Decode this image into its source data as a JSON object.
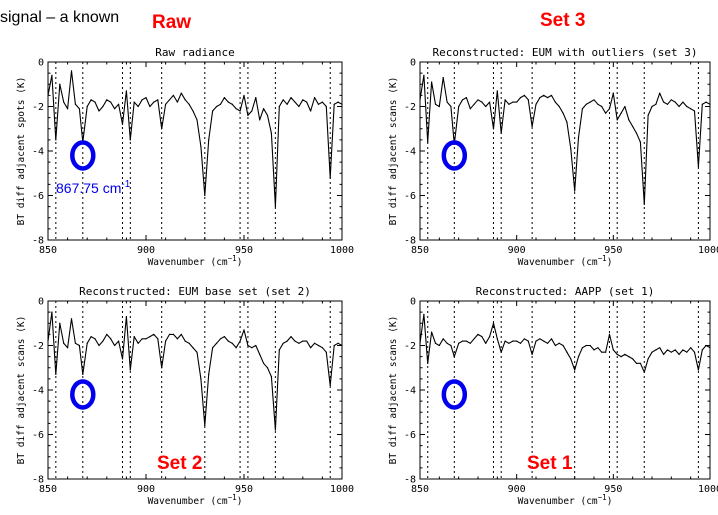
{
  "header_text": "signal – a known",
  "overlay_labels": {
    "raw": "Raw",
    "set3": "Set 3",
    "set2": "Set 2",
    "set1": "Set 1"
  },
  "annotation": {
    "label": "867.75 cm",
    "superscript": "-1",
    "color": "#0000ee"
  },
  "colors": {
    "overlay_label": "#ff0000",
    "circle": "#0000ee",
    "trace": "#000000"
  },
  "chart_data": [
    {
      "id": "raw",
      "type": "line",
      "title": "Raw radiance",
      "ylabel": "BT diff adjacent spots (K)",
      "xlabel": "Wavenumber (cm",
      "xlabel_sup": "−1",
      "xlabel_close": ")",
      "xlim": [
        850,
        1000
      ],
      "ylim": [
        -8,
        0
      ],
      "xticks": [
        850,
        900,
        950,
        1000
      ],
      "yticks": [
        -8,
        -6,
        -4,
        -2,
        0
      ],
      "reference_lines": [
        854,
        867.75,
        888,
        892,
        908,
        930,
        948,
        952,
        966,
        994
      ],
      "highlight_x": 867.75,
      "highlight_y": -4.2,
      "x": [
        850,
        852,
        854,
        856,
        858,
        860,
        862,
        864,
        866,
        867.75,
        870,
        872,
        874,
        876,
        878,
        880,
        882,
        884,
        886,
        888,
        890,
        892,
        894,
        896,
        898,
        900,
        902,
        904,
        906,
        908,
        910,
        912,
        914,
        916,
        918,
        920,
        922,
        924,
        926,
        928,
        930,
        932,
        934,
        936,
        938,
        940,
        942,
        944,
        946,
        948,
        950,
        952,
        954,
        956,
        958,
        960,
        962,
        964,
        966,
        968,
        970,
        972,
        974,
        976,
        978,
        980,
        982,
        984,
        986,
        988,
        990,
        992,
        994,
        996,
        998,
        1000
      ],
      "y": [
        -1.5,
        -0.6,
        -3.5,
        -1.0,
        -1.8,
        -2.1,
        -0.4,
        -1.9,
        -2.1,
        -3.6,
        -2.0,
        -1.7,
        -1.8,
        -2.2,
        -2.0,
        -1.7,
        -1.8,
        -2.1,
        -1.9,
        -2.8,
        -1.3,
        -3.5,
        -1.8,
        -2.0,
        -1.7,
        -1.6,
        -2.0,
        -1.8,
        -1.7,
        -3.0,
        -1.9,
        -1.7,
        -1.5,
        -1.8,
        -1.4,
        -1.7,
        -1.9,
        -2.2,
        -2.6,
        -3.8,
        -6.0,
        -3.5,
        -2.2,
        -2.0,
        -1.9,
        -1.6,
        -1.8,
        -1.9,
        -2.1,
        -2.2,
        -1.5,
        -2.4,
        -2.2,
        -1.6,
        -2.6,
        -2.1,
        -2.4,
        -3.2,
        -6.5,
        -2.0,
        -1.7,
        -1.9,
        -1.6,
        -1.8,
        -2.0,
        -1.7,
        -1.8,
        -2.2,
        -1.6,
        -1.9,
        -1.8,
        -2.0,
        -5.2,
        -1.9,
        -1.8,
        -1.9
      ]
    },
    {
      "id": "set3",
      "type": "line",
      "title": "Reconstructed: EUM with outliers (set 3)",
      "ylabel": "BT diff adjacent scans (K)",
      "xlabel": "Wavenumber (cm",
      "xlabel_sup": "−1",
      "xlabel_close": ")",
      "xlim": [
        850,
        1000
      ],
      "ylim": [
        -8,
        0
      ],
      "xticks": [
        850,
        900,
        950,
        1000
      ],
      "yticks": [
        -8,
        -6,
        -4,
        -2,
        0
      ],
      "reference_lines": [
        854,
        867.75,
        888,
        892,
        908,
        930,
        948,
        952,
        966,
        994
      ],
      "highlight_x": 867.75,
      "highlight_y": -4.2,
      "x": [
        850,
        852,
        854,
        856,
        858,
        860,
        862,
        864,
        866,
        867.75,
        870,
        872,
        874,
        876,
        878,
        880,
        882,
        884,
        886,
        888,
        890,
        892,
        894,
        896,
        898,
        900,
        902,
        904,
        906,
        908,
        910,
        912,
        914,
        916,
        918,
        920,
        922,
        924,
        926,
        928,
        930,
        932,
        934,
        936,
        938,
        940,
        942,
        944,
        946,
        948,
        950,
        952,
        954,
        956,
        958,
        960,
        962,
        964,
        966,
        968,
        970,
        972,
        974,
        976,
        978,
        980,
        982,
        984,
        986,
        988,
        990,
        992,
        994,
        996,
        998,
        1000
      ],
      "y": [
        -1.7,
        -0.6,
        -3.6,
        -0.9,
        -1.9,
        -2.0,
        -0.7,
        -1.8,
        -2.0,
        -3.7,
        -2.0,
        -1.7,
        -1.6,
        -2.1,
        -1.9,
        -1.7,
        -1.8,
        -2.0,
        -1.8,
        -3.0,
        -1.3,
        -3.2,
        -1.7,
        -1.9,
        -1.8,
        -1.8,
        -1.6,
        -1.5,
        -1.7,
        -2.9,
        -1.9,
        -1.6,
        -1.5,
        -1.6,
        -1.5,
        -1.8,
        -2.0,
        -2.3,
        -2.7,
        -3.9,
        -5.8,
        -3.4,
        -2.1,
        -1.9,
        -1.8,
        -1.7,
        -1.9,
        -2.0,
        -2.3,
        -2.1,
        -1.4,
        -2.6,
        -2.3,
        -2.0,
        -2.6,
        -2.9,
        -3.2,
        -3.6,
        -6.4,
        -2.4,
        -2.0,
        -1.9,
        -1.4,
        -1.8,
        -1.9,
        -1.7,
        -1.8,
        -2.0,
        -1.8,
        -2.0,
        -2.1,
        -2.2,
        -4.7,
        -1.9,
        -1.8,
        -1.9
      ]
    },
    {
      "id": "set2",
      "type": "line",
      "title": "Reconstructed: EUM base set (set 2)",
      "ylabel": "BT diff adjacent scans (K)",
      "xlabel": "Wavenumber (cm",
      "xlabel_sup": "−1",
      "xlabel_close": ")",
      "xlim": [
        850,
        1000
      ],
      "ylim": [
        -8,
        0
      ],
      "xticks": [
        850,
        900,
        950,
        1000
      ],
      "yticks": [
        -8,
        -6,
        -4,
        -2,
        0
      ],
      "reference_lines": [
        854,
        867.75,
        888,
        892,
        908,
        930,
        948,
        952,
        966,
        994
      ],
      "highlight_x": 867.75,
      "highlight_y": -4.2,
      "x": [
        850,
        852,
        854,
        856,
        858,
        860,
        862,
        864,
        866,
        867.75,
        870,
        872,
        874,
        876,
        878,
        880,
        882,
        884,
        886,
        888,
        890,
        892,
        894,
        896,
        898,
        900,
        902,
        904,
        906,
        908,
        910,
        912,
        914,
        916,
        918,
        920,
        922,
        924,
        926,
        928,
        930,
        932,
        934,
        936,
        938,
        940,
        942,
        944,
        946,
        948,
        950,
        952,
        954,
        956,
        958,
        960,
        962,
        964,
        966,
        968,
        970,
        972,
        974,
        976,
        978,
        980,
        982,
        984,
        986,
        988,
        990,
        992,
        994,
        996,
        998,
        1000
      ],
      "y": [
        -1.8,
        -0.5,
        -3.3,
        -1.0,
        -1.9,
        -2.1,
        -0.8,
        -1.9,
        -2.0,
        -3.3,
        -1.9,
        -1.6,
        -1.7,
        -2.0,
        -1.8,
        -1.5,
        -1.7,
        -2.0,
        -1.8,
        -2.6,
        -0.7,
        -3.1,
        -1.6,
        -1.9,
        -1.7,
        -1.7,
        -1.6,
        -1.5,
        -1.7,
        -3.0,
        -1.8,
        -1.5,
        -1.5,
        -1.7,
        -1.5,
        -1.8,
        -1.9,
        -2.1,
        -2.3,
        -3.5,
        -5.6,
        -3.3,
        -2.1,
        -1.9,
        -1.7,
        -1.6,
        -1.8,
        -1.9,
        -2.1,
        -1.8,
        -1.3,
        -2.0,
        -2.1,
        -2.0,
        -2.4,
        -2.8,
        -3.0,
        -3.4,
        -5.8,
        -2.2,
        -1.9,
        -1.8,
        -1.6,
        -1.8,
        -1.9,
        -1.8,
        -1.8,
        -2.1,
        -1.9,
        -2.0,
        -2.1,
        -2.3,
        -3.8,
        -2.0,
        -1.9,
        -2.0
      ]
    },
    {
      "id": "set1",
      "type": "line",
      "title": "Reconstructed: AAPP (set 1)",
      "ylabel": "BT diff adjacent scans (K)",
      "xlabel": "Wavenumber (cm",
      "xlabel_sup": "−1",
      "xlabel_close": ")",
      "xlim": [
        850,
        1000
      ],
      "ylim": [
        -8,
        0
      ],
      "xticks": [
        850,
        900,
        950,
        1000
      ],
      "yticks": [
        -8,
        -6,
        -4,
        -2,
        0
      ],
      "reference_lines": [
        854,
        867.75,
        888,
        892,
        908,
        930,
        948,
        952,
        966,
        994
      ],
      "highlight_x": 867.75,
      "highlight_y": -4.2,
      "x": [
        850,
        852,
        854,
        856,
        858,
        860,
        862,
        864,
        866,
        867.75,
        870,
        872,
        874,
        876,
        878,
        880,
        882,
        884,
        886,
        888,
        890,
        892,
        894,
        896,
        898,
        900,
        902,
        904,
        906,
        908,
        910,
        912,
        914,
        916,
        918,
        920,
        922,
        924,
        926,
        928,
        930,
        932,
        934,
        936,
        938,
        940,
        942,
        944,
        946,
        948,
        950,
        952,
        954,
        956,
        958,
        960,
        962,
        964,
        966,
        968,
        970,
        972,
        974,
        976,
        978,
        980,
        982,
        984,
        986,
        988,
        990,
        992,
        994,
        996,
        998,
        1000
      ],
      "y": [
        -1.9,
        -0.6,
        -2.8,
        -1.4,
        -1.9,
        -2.0,
        -1.7,
        -1.9,
        -2.0,
        -2.5,
        -1.9,
        -1.8,
        -1.8,
        -1.9,
        -1.7,
        -1.5,
        -1.6,
        -1.9,
        -1.6,
        -1.0,
        -1.7,
        -2.3,
        -1.8,
        -1.9,
        -1.8,
        -1.8,
        -1.9,
        -1.7,
        -1.8,
        -2.4,
        -1.8,
        -1.7,
        -1.8,
        -1.9,
        -1.7,
        -2.0,
        -1.9,
        -2.0,
        -2.3,
        -2.6,
        -3.1,
        -2.5,
        -2.1,
        -2.0,
        -2.0,
        -2.2,
        -2.1,
        -2.3,
        -2.3,
        -1.5,
        -2.2,
        -2.4,
        -2.5,
        -2.4,
        -2.5,
        -2.6,
        -2.8,
        -2.8,
        -3.2,
        -2.6,
        -2.3,
        -2.2,
        -2.1,
        -2.4,
        -2.2,
        -2.3,
        -2.2,
        -2.4,
        -2.2,
        -2.3,
        -2.1,
        -2.3,
        -3.1,
        -2.2,
        -2.0,
        -2.1
      ]
    }
  ]
}
